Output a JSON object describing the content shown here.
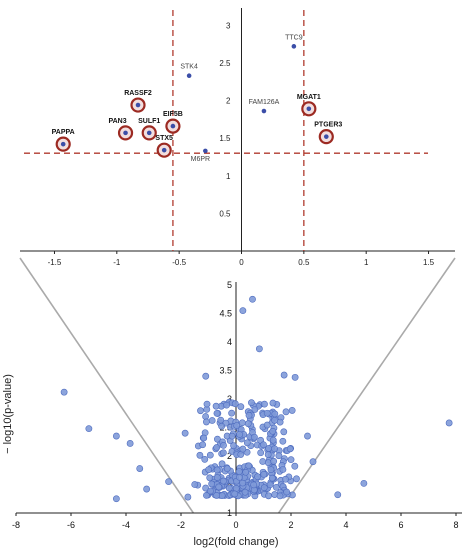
{
  "chart_data": [
    {
      "type": "scatter",
      "panel": "inset",
      "xlim": [
        -1.6,
        1.6
      ],
      "ylim": [
        0,
        3.15
      ],
      "x_ticks": [
        "-1.5",
        "-1",
        "-0.5",
        "0",
        "0.5",
        "1",
        "1.5"
      ],
      "y_ticks": [
        "0.5",
        "1",
        "1.5",
        "2",
        "2.5",
        "3"
      ],
      "threshold_x": [
        -0.55,
        0.5
      ],
      "threshold_y": 1.3,
      "grid": false,
      "points": [
        {
          "label": "TTC9",
          "x": 0.42,
          "y": 2.72,
          "circled": false
        },
        {
          "label": "STK4",
          "x": -0.42,
          "y": 2.33,
          "circled": false
        },
        {
          "label": "FAM126A",
          "x": 0.18,
          "y": 1.86,
          "circled": false
        },
        {
          "label": "RASSF2",
          "x": -0.83,
          "y": 1.94,
          "circled": true
        },
        {
          "label": "MGAT1",
          "x": 0.54,
          "y": 1.89,
          "circled": true
        },
        {
          "label": "EIF5B",
          "x": -0.55,
          "y": 1.66,
          "circled": true
        },
        {
          "label": "PAN3",
          "x": -0.93,
          "y": 1.57,
          "circled": true
        },
        {
          "label": "SULF1",
          "x": -0.74,
          "y": 1.57,
          "circled": true
        },
        {
          "label": "PTGER3",
          "x": 0.68,
          "y": 1.52,
          "circled": true
        },
        {
          "label": "PAPPA",
          "x": -1.43,
          "y": 1.42,
          "circled": true
        },
        {
          "label": "STX5",
          "x": -0.62,
          "y": 1.34,
          "circled": true
        },
        {
          "label": "M6PR",
          "x": -0.29,
          "y": 1.33,
          "circled": false
        }
      ]
    },
    {
      "type": "scatter",
      "panel": "main",
      "xlabel": "log2(fold change)",
      "ylabel": "− log10(p-value)",
      "xlim": [
        -8,
        8
      ],
      "ylim": [
        1,
        5
      ],
      "x_ticks": [
        "-8",
        "-6",
        "-4",
        "-2",
        "0",
        "2",
        "4",
        "6",
        "8"
      ],
      "y_ticks": [
        "1",
        "1.5",
        "2",
        "2.5",
        "3",
        "3.5",
        "4",
        "4.5",
        "5"
      ],
      "grid": false,
      "outliers": [
        {
          "x": 0.6,
          "y": 4.75
        },
        {
          "x": 0.25,
          "y": 4.55
        },
        {
          "x": 0.85,
          "y": 3.88
        },
        {
          "x": -1.1,
          "y": 3.4
        },
        {
          "x": 1.75,
          "y": 3.42
        },
        {
          "x": 2.15,
          "y": 3.38
        },
        {
          "x": 7.75,
          "y": 2.58
        },
        {
          "x": -4.35,
          "y": 2.35
        },
        {
          "x": -5.35,
          "y": 2.48
        },
        {
          "x": -6.25,
          "y": 3.12
        },
        {
          "x": -3.85,
          "y": 2.22
        },
        {
          "x": -3.5,
          "y": 1.78
        },
        {
          "x": -4.35,
          "y": 1.25
        },
        {
          "x": -3.25,
          "y": 1.42
        },
        {
          "x": -2.45,
          "y": 1.55
        },
        {
          "x": 3.7,
          "y": 1.32
        },
        {
          "x": 4.65,
          "y": 1.52
        },
        {
          "x": -1.85,
          "y": 2.4
        },
        {
          "x": 2.6,
          "y": 2.35
        },
        {
          "x": -1.5,
          "y": 1.5
        },
        {
          "x": 2.2,
          "y": 1.6
        },
        {
          "x": 1.6,
          "y": 1.3
        },
        {
          "x": -1.75,
          "y": 1.28
        },
        {
          "x": 2.8,
          "y": 1.9
        }
      ],
      "cluster": {
        "count": 310,
        "x_range": [
          -1.55,
          2.3
        ],
        "y_range": [
          1.3,
          2.95
        ]
      }
    }
  ]
}
